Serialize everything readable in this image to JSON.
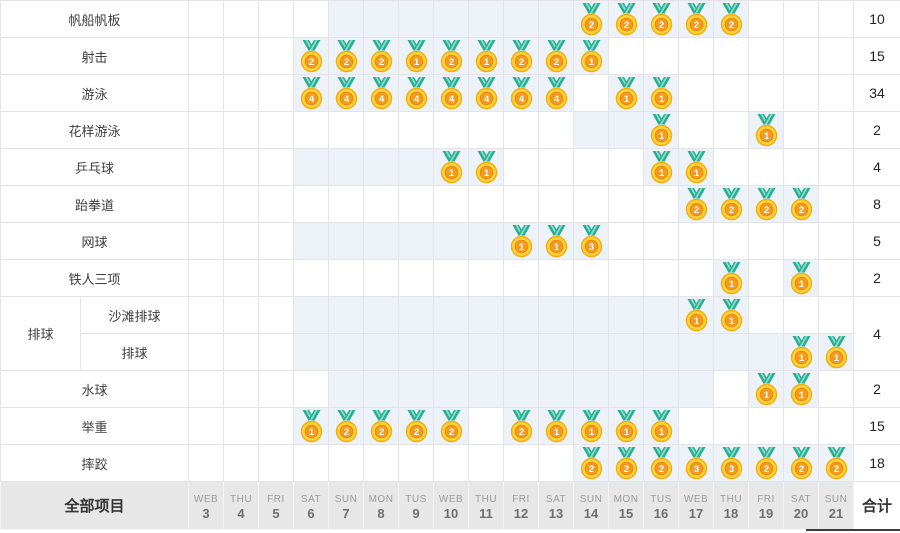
{
  "table": {
    "footer_label": "全部项目",
    "total_label": "合计",
    "days": [
      {
        "dow": "WEB",
        "date": 3
      },
      {
        "dow": "THU",
        "date": 4
      },
      {
        "dow": "FRI",
        "date": 5
      },
      {
        "dow": "SAT",
        "date": 6
      },
      {
        "dow": "SUN",
        "date": 7
      },
      {
        "dow": "MON",
        "date": 8
      },
      {
        "dow": "TUS",
        "date": 9
      },
      {
        "dow": "WEB",
        "date": 10
      },
      {
        "dow": "THU",
        "date": 11
      },
      {
        "dow": "FRI",
        "date": 12
      },
      {
        "dow": "SAT",
        "date": 13
      },
      {
        "dow": "SUN",
        "date": 14
      },
      {
        "dow": "MON",
        "date": 15
      },
      {
        "dow": "TUS",
        "date": 16
      },
      {
        "dow": "WEB",
        "date": 17
      },
      {
        "dow": "THU",
        "date": 18
      },
      {
        "dow": "FRI",
        "date": 19
      },
      {
        "dow": "SAT",
        "date": 20
      },
      {
        "dow": "SUN",
        "date": 21
      }
    ],
    "sports": [
      {
        "label": "帆船帆板",
        "total": "10",
        "medals": {
          "14": 2,
          "15": 2,
          "16": 2,
          "17": 2,
          "18": 2
        },
        "shaded": [
          [
            7,
            18
          ]
        ]
      },
      {
        "label": "射击",
        "total": "15",
        "medals": {
          "6": 2,
          "7": 2,
          "8": 2,
          "9": 1,
          "10": 2,
          "11": 1,
          "12": 2,
          "13": 2,
          "14": 1
        },
        "shaded": [
          [
            6,
            14
          ]
        ]
      },
      {
        "label": "游泳",
        "total": "34",
        "medals": {
          "6": 4,
          "7": 4,
          "8": 4,
          "9": 4,
          "10": 4,
          "11": 4,
          "12": 4,
          "13": 4,
          "15": 1,
          "16": 1
        },
        "shaded": [
          [
            6,
            13
          ],
          [
            15,
            16
          ]
        ]
      },
      {
        "label": "花样游泳",
        "total": "2",
        "medals": {
          "16": 1,
          "19": 1
        },
        "shaded": [
          [
            14,
            16
          ],
          [
            19,
            19
          ]
        ]
      },
      {
        "label": "乒乓球",
        "total": "4",
        "medals": {
          "10": 1,
          "11": 1,
          "16": 1,
          "17": 1
        },
        "shaded": [
          [
            6,
            11
          ],
          [
            16,
            17
          ]
        ]
      },
      {
        "label": "跆拳道",
        "total": "8",
        "medals": {
          "17": 2,
          "18": 2,
          "19": 2,
          "20": 2
        },
        "shaded": [
          [
            17,
            20
          ]
        ]
      },
      {
        "label": "网球",
        "total": "5",
        "medals": {
          "12": 1,
          "13": 1,
          "14": 3
        },
        "shaded": [
          [
            6,
            14
          ]
        ]
      },
      {
        "label": "铁人三项",
        "total": "2",
        "medals": {
          "18": 1,
          "20": 1
        },
        "shaded": [
          [
            18,
            18
          ],
          [
            20,
            20
          ]
        ]
      },
      {
        "group": "排球",
        "group_rowspan": 2,
        "is_sub": true,
        "label": "沙滩排球",
        "total": "4",
        "total_rowspan": 2,
        "medals": {
          "17": 1,
          "18": 1
        },
        "shaded": [
          [
            6,
            18
          ]
        ]
      },
      {
        "is_sub": true,
        "label": "排球",
        "medals": {
          "20": 1,
          "21": 1
        },
        "shaded": [
          [
            6,
            21
          ]
        ]
      },
      {
        "label": "水球",
        "total": "2",
        "medals": {
          "19": 1,
          "20": 1
        },
        "shaded": [
          [
            7,
            17
          ],
          [
            19,
            20
          ]
        ]
      },
      {
        "label": "举重",
        "total": "15",
        "medals": {
          "6": 1,
          "7": 2,
          "8": 2,
          "9": 2,
          "10": 2,
          "12": 2,
          "13": 1,
          "14": 1,
          "15": 1,
          "16": 1
        },
        "shaded": [
          [
            6,
            10
          ],
          [
            12,
            16
          ]
        ]
      },
      {
        "label": "摔跤",
        "total": "18",
        "medals": {
          "14": 2,
          "15": 2,
          "16": 2,
          "17": 3,
          "18": 3,
          "19": 2,
          "20": 2,
          "21": 2
        },
        "shaded": [
          [
            14,
            21
          ]
        ]
      }
    ],
    "colors": {
      "shaded_bg": "#edf1f8",
      "footer_bg": "#e7e7e7",
      "medal_gold": "#fdd33c",
      "medal_inner": "#f49b1f",
      "ribbon_teal": "#25ae91"
    }
  }
}
